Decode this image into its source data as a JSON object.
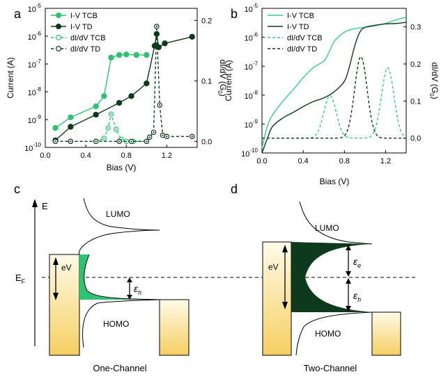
{
  "colors": {
    "tcb": "#2fc273",
    "td": "#0d3a1d",
    "tcb_curve": "#36d189",
    "grad_top": "#fffbe8",
    "grad_bottom": "#f6cf62"
  },
  "chart_data": [
    {
      "panel": "a",
      "type": "line",
      "xlabel": "Bias (V)",
      "ylabel_left": "Current (A)",
      "ylabel_right": "dI/dV (G",
      "ylabel_right_sub": "0",
      "ylabel_right_end": ")",
      "xlim": [
        0,
        1.5
      ],
      "ylim_left": [
        1e-10,
        1e-05
      ],
      "yscale_left": "log",
      "ylim_right": [
        -0.01,
        0.22
      ],
      "x_ticks": [
        "0.0",
        "0.4",
        "0.8",
        "1.2"
      ],
      "y_ticks_left": [
        {
          "base": "10",
          "exp": "-10"
        },
        {
          "base": "10",
          "exp": "-9"
        },
        {
          "base": "10",
          "exp": "-8"
        },
        {
          "base": "10",
          "exp": "-7"
        },
        {
          "base": "10",
          "exp": "-6"
        },
        {
          "base": "10",
          "exp": "-5"
        }
      ],
      "y_ticks_right": [
        "0.0",
        "0.1",
        "0.2"
      ],
      "legend_position": "top-left",
      "series": [
        {
          "name": "I-V TCB",
          "axis": "left",
          "style": "solid-filled",
          "x": [
            0.1,
            0.25,
            0.5,
            0.58,
            0.65,
            0.73,
            0.8,
            0.9,
            1.0
          ],
          "y": [
            5e-10,
            1.2e-09,
            3e-09,
            7e-09,
            1.7e-07,
            2.1e-07,
            2.2e-07,
            2.1e-07,
            2.1e-07
          ]
        },
        {
          "name": "I-V TD",
          "axis": "left",
          "style": "solid-filled",
          "x": [
            0.1,
            0.25,
            0.5,
            0.73,
            0.85,
            1.0,
            1.08,
            1.1,
            1.12,
            1.18,
            1.45
          ],
          "y": [
            1.8e-10,
            5.5e-10,
            1.5e-09,
            4e-09,
            7e-09,
            2e-08,
            4.5e-07,
            1.2e-06,
            4e-07,
            5.5e-07,
            9.5e-07
          ]
        },
        {
          "name": "dI/dV TCB",
          "axis": "right",
          "style": "dashed-open",
          "x": [
            0.1,
            0.25,
            0.5,
            0.58,
            0.62,
            0.65,
            0.7,
            0.75,
            0.8,
            0.87,
            1.0
          ],
          "y": [
            0.0,
            0.0,
            0.0,
            0.005,
            0.022,
            0.045,
            0.02,
            0.003,
            0.0,
            0.0,
            0.0
          ]
        },
        {
          "name": "dI/dV TD",
          "axis": "right",
          "style": "dashed-open",
          "x": [
            0.1,
            0.25,
            0.5,
            0.73,
            0.85,
            1.0,
            1.03,
            1.07,
            1.1,
            1.13,
            1.16,
            1.2,
            1.45
          ],
          "y": [
            0.0,
            0.0,
            0.0,
            0.0,
            0.0,
            0.0,
            0.007,
            0.015,
            0.19,
            0.06,
            0.01,
            0.008,
            0.008
          ]
        }
      ]
    },
    {
      "panel": "b",
      "type": "line",
      "xlabel": "Bias (V)",
      "ylabel_left": "Current (A)",
      "ylabel_right": "dI/dV (G",
      "ylabel_right_sub": "0",
      "ylabel_right_end": ")",
      "xlim": [
        0,
        1.4
      ],
      "ylim_left": [
        1e-10,
        1e-05
      ],
      "yscale_left": "log",
      "ylim_right": [
        -0.04,
        0.35
      ],
      "x_ticks": [
        "0.0",
        "0.4",
        "0.8",
        "1.2"
      ],
      "y_ticks_left": [
        {
          "base": "10",
          "exp": "-10"
        },
        {
          "base": "10",
          "exp": "-9"
        },
        {
          "base": "10",
          "exp": "-8"
        },
        {
          "base": "10",
          "exp": "-7"
        },
        {
          "base": "10",
          "exp": "-6"
        },
        {
          "base": "10",
          "exp": "-5"
        }
      ],
      "y_ticks_right": [
        "0.0",
        "0.1",
        "0.2",
        "0.3"
      ],
      "legend_position": "top-left",
      "series": [
        {
          "name": "I-V TCB",
          "axis": "left",
          "style": "solid",
          "x": [
            0,
            0.05,
            0.1,
            0.2,
            0.3,
            0.4,
            0.5,
            0.6,
            0.65,
            0.7,
            0.8,
            0.9,
            1.0,
            1.1,
            1.2,
            1.3,
            1.4
          ],
          "y": [
            1.5e-10,
            8e-10,
            2e-09,
            6e-09,
            1.5e-08,
            4e-08,
            9e-08,
            1.5e-07,
            3e-07,
            7e-07,
            1.5e-06,
            2e-06,
            2.2e-06,
            2.5e-06,
            3e-06,
            4e-06,
            5e-06
          ]
        },
        {
          "name": "I-V TD",
          "axis": "left",
          "style": "solid",
          "x": [
            0,
            0.05,
            0.1,
            0.2,
            0.3,
            0.4,
            0.5,
            0.6,
            0.7,
            0.8,
            0.85,
            0.9,
            0.95,
            1.0,
            1.1,
            1.2,
            1.3,
            1.4
          ],
          "y": [
            1e-10,
            3e-10,
            8e-10,
            1.6e-09,
            2.5e-09,
            4e-09,
            6e-09,
            8e-09,
            1.3e-08,
            3e-08,
            1e-07,
            5e-07,
            1.5e-06,
            2.2e-06,
            2.6e-06,
            2.9e-06,
            3e-06,
            3.3e-06
          ]
        },
        {
          "name": "dI/dV TCB",
          "axis": "right",
          "style": "dashed",
          "peaks": [
            {
              "center": 0.66,
              "height": 0.115,
              "width": 0.085
            },
            {
              "center": 1.22,
              "height": 0.19,
              "width": 0.085
            }
          ],
          "baseline": 0.0
        },
        {
          "name": "dI/dV TD",
          "axis": "right",
          "style": "dashed",
          "peaks": [
            {
              "center": 0.96,
              "height": 0.22,
              "width": 0.085
            }
          ],
          "baseline": 0.0
        }
      ]
    }
  ],
  "diagram_c": {
    "panel": "c",
    "axis_label_E": "E",
    "fermi_label": "E",
    "fermi_sub": "F",
    "lumo": "LUMO",
    "homo": "HOMO",
    "eV": "eV",
    "eps_symbol": "ε",
    "eps_sub": "h",
    "caption": "One-Channel"
  },
  "diagram_d": {
    "panel": "d",
    "lumo": "LUMO",
    "homo": "HOMO",
    "eV": "eV",
    "eps_symbol_e": "ε",
    "eps_sub_e": "e",
    "eps_symbol_h": "ε",
    "eps_sub_h": "h",
    "caption": "Two-Channel"
  }
}
